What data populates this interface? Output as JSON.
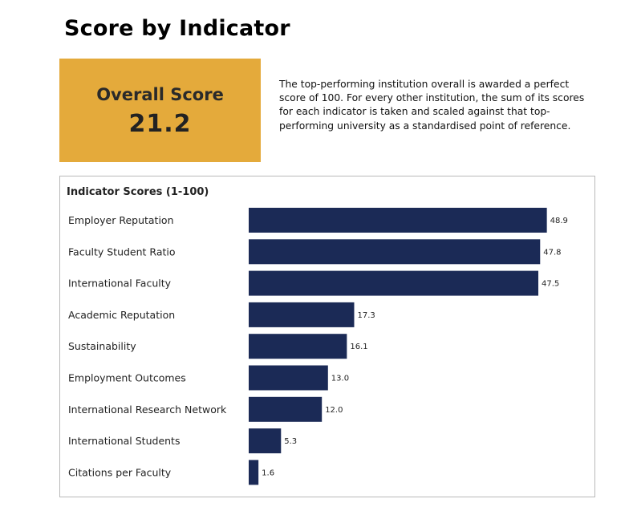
{
  "page": {
    "title": "Score by Indicator"
  },
  "overall": {
    "label": "Overall Score",
    "value": "21.2",
    "accent_color": "#e4aa3b"
  },
  "description": "The top-performing institution overall is awarded a perfect score of 100. For every other institution, the sum of its scores for each indicator is taken and scaled against that top-performing university as a standardised point of reference.",
  "chart_data": {
    "type": "bar",
    "orientation": "horizontal",
    "title": "Indicator Scores (1-100)",
    "categories": [
      "Employer Reputation",
      "Faculty Student Ratio",
      "International Faculty",
      "Academic Reputation",
      "Sustainability",
      "Employment Outcomes",
      "International Research Network",
      "International Students",
      "Citations per Faculty"
    ],
    "values": [
      48.9,
      47.8,
      47.5,
      17.3,
      16.1,
      13.0,
      12.0,
      5.3,
      1.6
    ],
    "value_labels": [
      "48.9",
      "47.8",
      "47.5",
      "17.3",
      "16.1",
      "13.0",
      "12.0",
      "5.3",
      "1.6"
    ],
    "xlim": [
      0,
      50
    ],
    "bar_color": "#1b2a56",
    "grid": false,
    "legend": false
  }
}
